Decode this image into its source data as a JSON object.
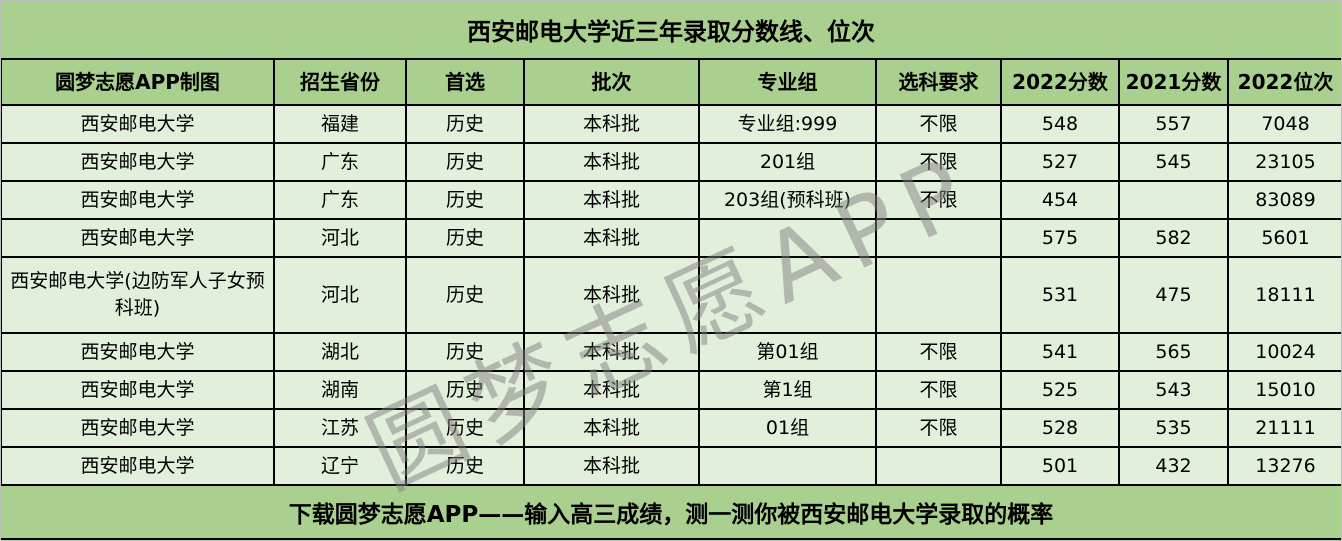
{
  "chart_data": {
    "type": "table",
    "title": "西安邮电大学近三年录取分数线、位次",
    "columns": [
      "圆梦志愿APP制图",
      "招生省份",
      "首选",
      "批次",
      "专业组",
      "选科要求",
      "2022分数",
      "2021分数",
      "2022位次"
    ],
    "rows": [
      [
        "西安邮电大学",
        "福建",
        "历史",
        "本科批",
        "专业组:999",
        "不限",
        "548",
        "557",
        "7048"
      ],
      [
        "西安邮电大学",
        "广东",
        "历史",
        "本科批",
        "201组",
        "不限",
        "527",
        "545",
        "23105"
      ],
      [
        "西安邮电大学",
        "广东",
        "历史",
        "本科批",
        "203组(预科班)",
        "不限",
        "454",
        "",
        "83089"
      ],
      [
        "西安邮电大学",
        "河北",
        "历史",
        "本科批",
        "",
        "",
        "575",
        "582",
        "5601"
      ],
      [
        "西安邮电大学(边防军人子女预科班)",
        "河北",
        "历史",
        "本科批",
        "",
        "",
        "531",
        "475",
        "18111"
      ],
      [
        "西安邮电大学",
        "湖北",
        "历史",
        "本科批",
        "第01组",
        "不限",
        "541",
        "565",
        "10024"
      ],
      [
        "西安邮电大学",
        "湖南",
        "历史",
        "本科批",
        "第1组",
        "不限",
        "525",
        "543",
        "15010"
      ],
      [
        "西安邮电大学",
        "江苏",
        "历史",
        "本科批",
        "01组",
        "不限",
        "528",
        "535",
        "21111"
      ],
      [
        "西安邮电大学",
        "辽宁",
        "历史",
        "本科批",
        "",
        "",
        "501",
        "432",
        "13276"
      ]
    ],
    "footer": "下载圆梦志愿APP——输入高三成绩，测一测你被西安邮电大学录取的概率",
    "watermark": "圆梦志愿APP"
  },
  "colors": {
    "band_green": "#a9d08e",
    "row_green": "#e2efda",
    "border": "#000000",
    "watermark_gray": "#808080",
    "text": "#000000"
  }
}
